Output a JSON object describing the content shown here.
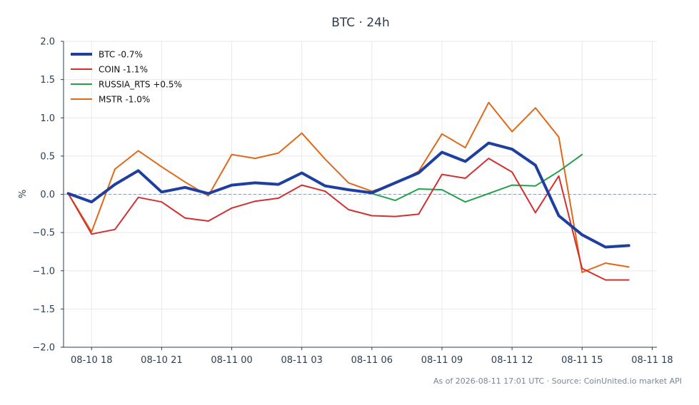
{
  "chart_data": {
    "type": "line",
    "title": "BTC · 24h",
    "xlabel": "",
    "ylabel": "%",
    "ylim": [
      -2.0,
      2.0
    ],
    "yticks": [
      2.0,
      1.5,
      1.0,
      0.5,
      0.0,
      -0.5,
      -1.0,
      -1.5,
      -2.0
    ],
    "ytick_labels": [
      "2.0",
      "1.5",
      "1.0",
      "0.5",
      "0.0",
      "−0.5",
      "−1.0",
      "−1.5",
      "−2.0"
    ],
    "xlim": [
      "2026-08-10 16:48",
      "2026-08-11 18:12"
    ],
    "xticks": [
      "2026-08-10 18:00",
      "2026-08-10 21:00",
      "2026-08-11 00:00",
      "2026-08-11 03:00",
      "2026-08-11 06:00",
      "2026-08-11 09:00",
      "2026-08-11 12:00",
      "2026-08-11 15:00",
      "2026-08-11 18:00"
    ],
    "xtick_labels": [
      "08-10 18",
      "08-10 21",
      "08-11 00",
      "08-11 03",
      "08-11 06",
      "08-11 09",
      "08-11 12",
      "08-11 15",
      "08-11 18"
    ],
    "x": [
      "2026-08-10 17:00",
      "2026-08-10 18:00",
      "2026-08-10 19:00",
      "2026-08-10 20:00",
      "2026-08-10 21:00",
      "2026-08-10 22:00",
      "2026-08-10 23:00",
      "2026-08-11 00:00",
      "2026-08-11 01:00",
      "2026-08-11 02:00",
      "2026-08-11 03:00",
      "2026-08-11 04:00",
      "2026-08-11 05:00",
      "2026-08-11 06:00",
      "2026-08-11 07:00",
      "2026-08-11 08:00",
      "2026-08-11 09:00",
      "2026-08-11 10:00",
      "2026-08-11 11:00",
      "2026-08-11 12:00",
      "2026-08-11 13:00",
      "2026-08-11 14:00",
      "2026-08-11 15:00",
      "2026-08-11 16:00",
      "2026-08-11 17:00"
    ],
    "grid": true,
    "legend_position": "top-left",
    "reference_line": 0.0,
    "series": [
      {
        "name": "BTC -0.7%",
        "color": "#1f3fa0",
        "values": [
          0.01,
          -0.1,
          0.13,
          0.31,
          0.03,
          0.09,
          0.01,
          0.12,
          0.15,
          0.13,
          0.28,
          0.11,
          0.06,
          0.02,
          0.15,
          0.28,
          0.55,
          0.43,
          0.67,
          0.59,
          0.38,
          -0.28,
          -0.53,
          -0.69,
          -0.67
        ]
      },
      {
        "name": "COIN -1.1%",
        "color": "#d03030",
        "values": [
          0.01,
          -0.52,
          -0.46,
          -0.04,
          -0.1,
          -0.31,
          -0.35,
          -0.18,
          -0.09,
          -0.05,
          0.12,
          0.04,
          -0.2,
          -0.28,
          -0.29,
          -0.26,
          0.26,
          0.21,
          0.47,
          0.29,
          -0.24,
          0.24,
          -0.97,
          -1.12,
          -1.12
        ]
      },
      {
        "name": "RUSSIA_RTS +0.5%",
        "color": "#22a04a",
        "values": [
          null,
          null,
          null,
          null,
          null,
          null,
          null,
          null,
          null,
          null,
          null,
          null,
          null,
          0.01,
          -0.08,
          0.07,
          0.06,
          -0.1,
          0.01,
          0.12,
          0.11,
          0.3,
          0.52,
          null,
          null
        ]
      },
      {
        "name": "MSTR -1.0%",
        "color": "#e06818",
        "values": [
          0.01,
          -0.49,
          0.33,
          0.57,
          0.36,
          0.16,
          -0.02,
          0.52,
          0.47,
          0.54,
          0.8,
          0.46,
          0.15,
          0.04,
          0.14,
          0.3,
          0.79,
          0.61,
          1.2,
          0.82,
          1.13,
          0.75,
          -1.02,
          -0.9,
          -0.95
        ]
      }
    ]
  },
  "footer": {
    "source": "As of 2026-08-11 17:01 UTC · Source: CoinUnited.io market API"
  },
  "colors": {
    "axis": "#2d3e50",
    "grid": "#e8e8e8",
    "zero_line": "#8b9bb4",
    "title": "#2d3e50",
    "footer": "#7a8694"
  }
}
